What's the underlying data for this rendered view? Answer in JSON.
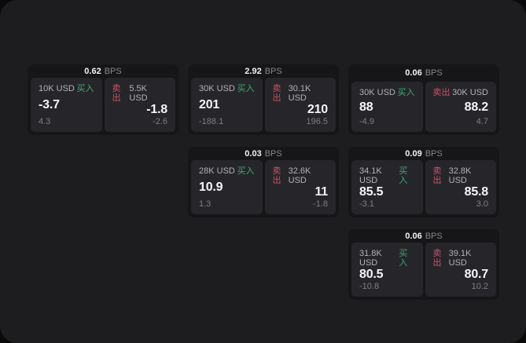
{
  "unit_label": "BPS",
  "side_labels": {
    "buy": "买入",
    "sell": "卖出"
  },
  "colors": {
    "buy_accent": "#3fa873",
    "sell_accent": "#cf4f68",
    "backdrop": "#0a0a0b",
    "surface": "#1d1d1f",
    "card": "#161618",
    "tile": "#26262a"
  },
  "cards": [
    {
      "bps": "0.62",
      "grid": {
        "row": 1,
        "col": 1
      },
      "buy": {
        "size": "10K USD",
        "value": "-3.7",
        "change": "4.3"
      },
      "sell": {
        "size": "5.5K USD",
        "value": "-1.8",
        "change": "-2.6"
      }
    },
    {
      "bps": "2.92",
      "grid": {
        "row": 1,
        "col": 2
      },
      "buy": {
        "size": "30K USD",
        "value": "201",
        "change": "-188.1"
      },
      "sell": {
        "size": "30.1K USD",
        "value": "210",
        "change": "196.5"
      }
    },
    {
      "bps": "0.06",
      "grid": {
        "row": 1,
        "col": 3
      },
      "buy": {
        "size": "30K USD",
        "value": "88",
        "change": "-4.9"
      },
      "sell": {
        "size": "30K USD",
        "value": "88.2",
        "change": "4.7"
      }
    },
    {
      "bps": "0.03",
      "grid": {
        "row": 2,
        "col": 2
      },
      "buy": {
        "size": "28K USD",
        "value": "10.9",
        "change": "1.3"
      },
      "sell": {
        "size": "32.6K USD",
        "value": "11",
        "change": "-1.8"
      }
    },
    {
      "bps": "0.09",
      "grid": {
        "row": 2,
        "col": 3
      },
      "buy": {
        "size": "34.1K USD",
        "value": "85.5",
        "change": "-3.1"
      },
      "sell": {
        "size": "32.8K USD",
        "value": "85.8",
        "change": "3.0"
      }
    },
    {
      "bps": "0.06",
      "grid": {
        "row": 3,
        "col": 3
      },
      "buy": {
        "size": "31.8K USD",
        "value": "80.5",
        "change": "-10.8"
      },
      "sell": {
        "size": "39.1K USD",
        "value": "80.7",
        "change": "10.2"
      }
    }
  ]
}
